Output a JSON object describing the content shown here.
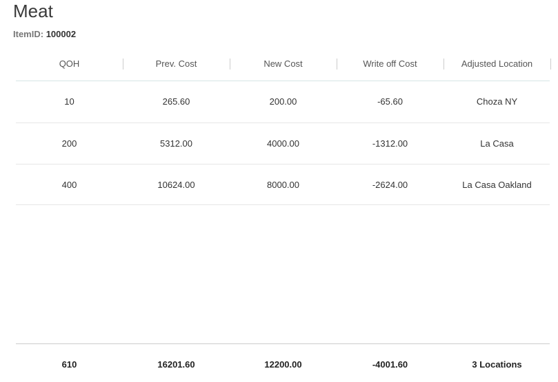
{
  "header": {
    "title": "Meat",
    "item_id_label": "ItemID:",
    "item_id": "100002"
  },
  "table": {
    "columns": [
      "QOH",
      "Prev. Cost",
      "New Cost",
      "Write off Cost",
      "Adjusted Location"
    ],
    "rows": [
      [
        "10",
        "265.60",
        "200.00",
        "-65.60",
        "Choza NY"
      ],
      [
        "200",
        "5312.00",
        "4000.00",
        "-1312.00",
        "La Casa"
      ],
      [
        "400",
        "10624.00",
        "8000.00",
        "-2624.00",
        "La Casa Oakland"
      ]
    ],
    "totals": [
      "610",
      "16201.60",
      "12200.00",
      "-4001.60",
      "3 Locations"
    ]
  }
}
